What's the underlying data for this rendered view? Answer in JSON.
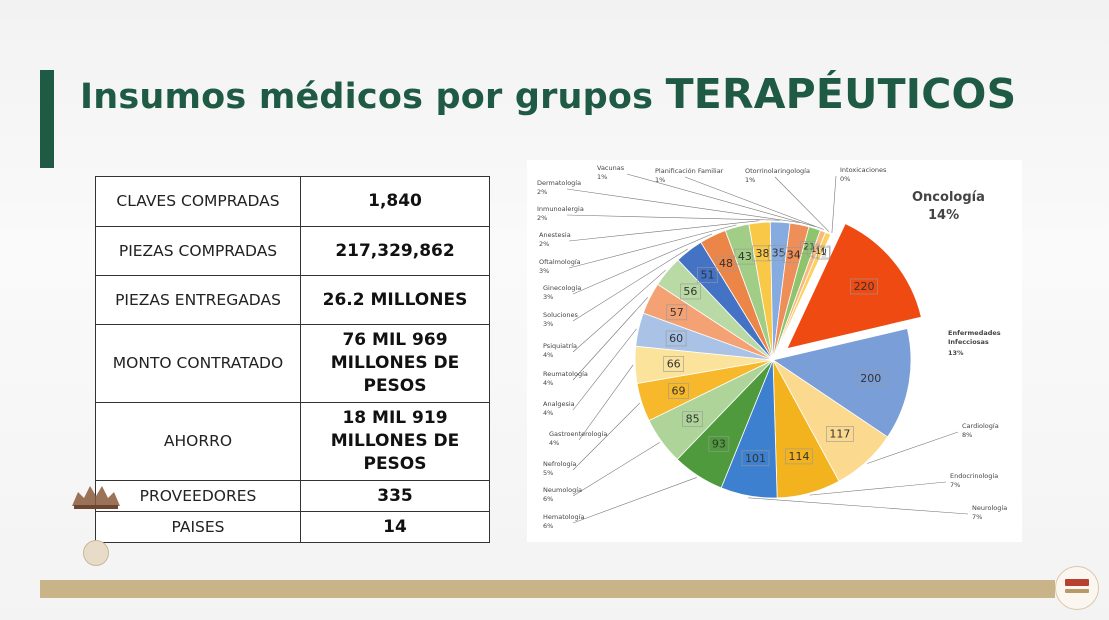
{
  "title": {
    "part1": "Insumos médicos por grupos ",
    "part2": "TERAPÉUTICOS"
  },
  "stats": [
    {
      "label": "CLAVES COMPRADAS",
      "value": "1,840"
    },
    {
      "label": "PIEZAS COMPRADAS",
      "value": "217,329,862"
    },
    {
      "label": "PIEZAS ENTREGADAS",
      "value": "26.2 MILLONES"
    },
    {
      "label": "MONTO CONTRATADO",
      "value": "76 MIL 969 MILLONES DE PESOS"
    },
    {
      "label": "AHORRO",
      "value": "18 MIL 919 MILLONES DE PESOS"
    },
    {
      "label": "PROVEEDORES",
      "value": "335"
    },
    {
      "label": "PAISES",
      "value": "14"
    }
  ],
  "chart_data": {
    "type": "pie",
    "slices": [
      {
        "name": "Oncología",
        "value": 220,
        "percent": "14%",
        "color": "#f04a13",
        "exploded": true
      },
      {
        "name": "Enfermedades Infecciosas",
        "value": 200,
        "percent": "13%",
        "color": "#7a9fd8"
      },
      {
        "name": "Cardiología",
        "value": 117,
        "percent": "8%",
        "color": "#fbd98f"
      },
      {
        "name": "Endocrinología",
        "value": 114,
        "percent": "7%",
        "color": "#f3b31f"
      },
      {
        "name": "Neurología",
        "value": 101,
        "percent": "7%",
        "color": "#3c80cf"
      },
      {
        "name": "Hematología",
        "value": 93,
        "percent": "6%",
        "color": "#4f9a3c"
      },
      {
        "name": "Neumología",
        "value": 85,
        "percent": "6%",
        "color": "#aed49a"
      },
      {
        "name": "Nefrología",
        "value": 69,
        "percent": "5%",
        "color": "#f7b82c"
      },
      {
        "name": "Gastroenterología",
        "value": 66,
        "percent": "4%",
        "color": "#fce39c"
      },
      {
        "name": "Analgesia",
        "value": 60,
        "percent": "4%",
        "color": "#a9c2e6"
      },
      {
        "name": "Reumatología",
        "value": 57,
        "percent": "4%",
        "color": "#f4a173"
      },
      {
        "name": "Psiquiatría",
        "value": 56,
        "percent": "4%",
        "color": "#b9d9a5"
      },
      {
        "name": "Soluciones",
        "value": 51,
        "percent": "3%",
        "color": "#4472c4"
      },
      {
        "name": "Ginecología",
        "value": 48,
        "percent": "3%",
        "color": "#ec8648"
      },
      {
        "name": "Oftalmología",
        "value": 43,
        "percent": "3%",
        "color": "#a1cd86"
      },
      {
        "name": "Anestesia",
        "value": 38,
        "percent": "2%",
        "color": "#f8c846"
      },
      {
        "name": "Inmunoalergia",
        "value": 35,
        "percent": "2%",
        "color": "#85abe0"
      },
      {
        "name": "Dermatología",
        "value": 34,
        "percent": "2%",
        "color": "#ee8e58"
      },
      {
        "name": "Vacunas",
        "value": 21,
        "percent": "1%",
        "color": "#8dc46c"
      },
      {
        "name": "Planificación Familiar",
        "value": 10,
        "percent": "1%",
        "color": "#f9b87f"
      },
      {
        "name": "Otorrinolaringología",
        "value": 10,
        "percent": "1%",
        "color": "#fbd160"
      },
      {
        "name": "Intoxicaciones",
        "value": 1,
        "percent": "0%",
        "color": "#c9daf0"
      }
    ],
    "data_labels": [
      "220",
      "200",
      "117",
      "114",
      "101",
      "93",
      "85",
      "69",
      "66",
      "60",
      "57",
      "56",
      "51",
      "48",
      "43",
      "38",
      "35",
      "34",
      "21",
      "10",
      "10",
      "1"
    ]
  }
}
